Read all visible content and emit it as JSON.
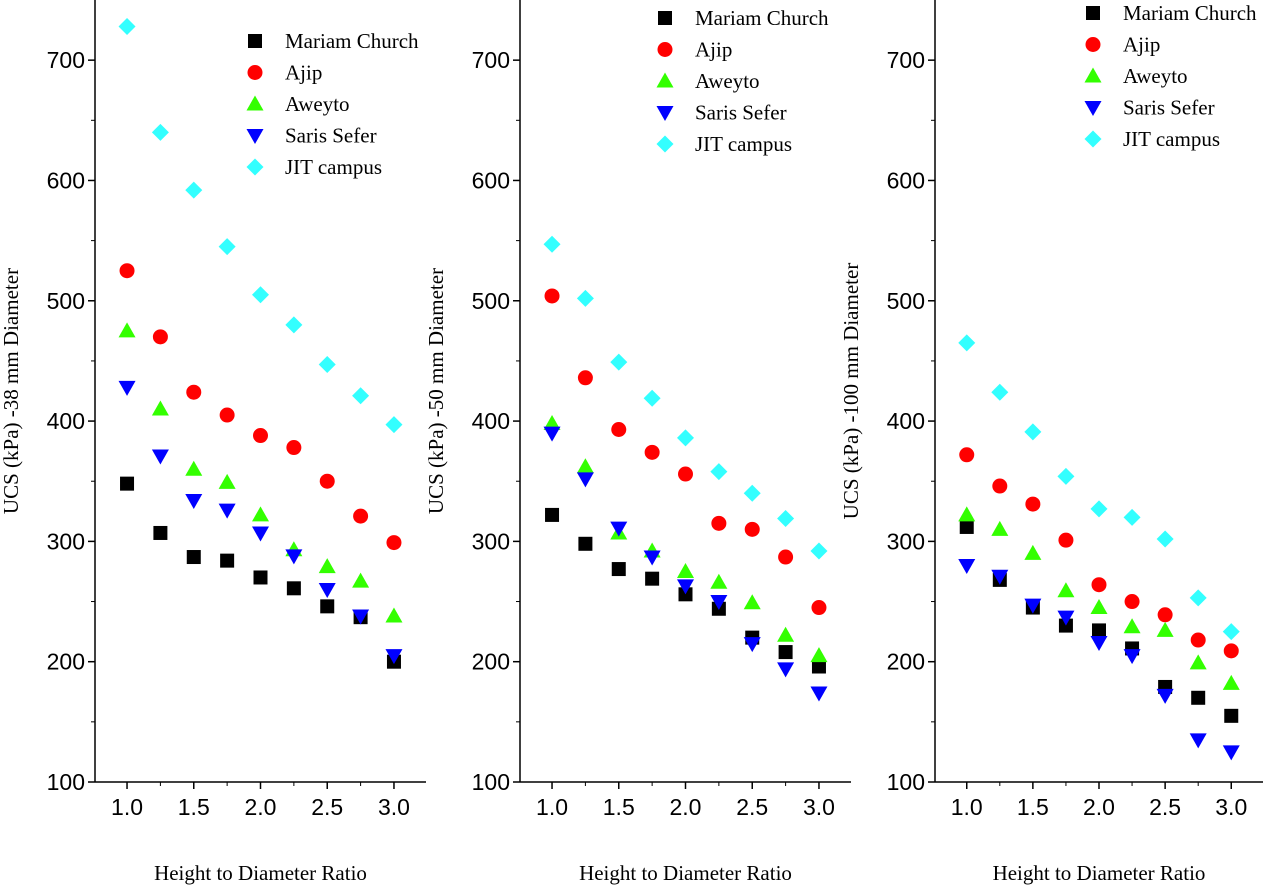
{
  "chart_data": [
    {
      "type": "scatter",
      "xlabel": "Height to Diameter Ratio",
      "ylabel": "UCS (kPa) -38 mm Diameter",
      "xlim": [
        0.76,
        3.24
      ],
      "ylim": [
        100,
        750
      ],
      "xticks": [
        "1.0",
        "1.5",
        "2.0",
        "2.5",
        "3.0"
      ],
      "yticks": [
        "100",
        "200",
        "300",
        "400",
        "500",
        "600",
        "700"
      ],
      "legend_position": "top-right",
      "x": [
        1.0,
        1.25,
        1.5,
        1.75,
        2.0,
        2.25,
        2.5,
        2.75,
        3.0
      ],
      "series": [
        {
          "name": "Mariam Church",
          "marker": "square",
          "color": "#000000",
          "values": [
            348,
            307,
            287,
            284,
            270,
            261,
            246,
            237,
            200
          ]
        },
        {
          "name": "Ajip",
          "marker": "circle",
          "color": "#ff0000",
          "values": [
            525,
            470,
            424,
            405,
            388,
            378,
            350,
            321,
            299
          ]
        },
        {
          "name": "Aweyto",
          "marker": "triangle-up",
          "color": "#33ff00",
          "values": [
            475,
            410,
            360,
            349,
            322,
            293,
            279,
            267,
            238
          ]
        },
        {
          "name": "Saris Sefer",
          "marker": "triangle-down",
          "color": "#0000ff",
          "values": [
            428,
            371,
            334,
            326,
            307,
            288,
            260,
            238,
            205
          ]
        },
        {
          "name": "JIT campus",
          "marker": "diamond",
          "color": "#33ffff",
          "values": [
            728,
            640,
            592,
            545,
            505,
            480,
            447,
            421,
            397
          ]
        }
      ]
    },
    {
      "type": "scatter",
      "xlabel": "Height to Diameter Ratio",
      "ylabel": "UCS (kPa) -50 mm Diameter",
      "xlim": [
        0.76,
        3.24
      ],
      "ylim": [
        100,
        750
      ],
      "xticks": [
        "1.0",
        "1.5",
        "2.0",
        "2.5",
        "3.0"
      ],
      "yticks": [
        "100",
        "200",
        "300",
        "400",
        "500",
        "600",
        "700"
      ],
      "legend_position": "top-right",
      "x": [
        1.0,
        1.25,
        1.5,
        1.75,
        2.0,
        2.25,
        2.5,
        2.75,
        3.0
      ],
      "series": [
        {
          "name": "Mariam Church",
          "marker": "square",
          "color": "#000000",
          "values": [
            322,
            298,
            277,
            269,
            256,
            244,
            220,
            208,
            196
          ]
        },
        {
          "name": "Ajip",
          "marker": "circle",
          "color": "#ff0000",
          "values": [
            504,
            436,
            393,
            374,
            356,
            315,
            310,
            287,
            245
          ]
        },
        {
          "name": "Aweyto",
          "marker": "triangle-up",
          "color": "#33ff00",
          "values": [
            398,
            362,
            307,
            292,
            275,
            266,
            249,
            222,
            205
          ]
        },
        {
          "name": "Saris Sefer",
          "marker": "triangle-down",
          "color": "#0000ff",
          "values": [
            390,
            352,
            311,
            287,
            263,
            250,
            215,
            194,
            174
          ]
        },
        {
          "name": "JIT campus",
          "marker": "diamond",
          "color": "#33ffff",
          "values": [
            547,
            502,
            449,
            419,
            386,
            358,
            340,
            319,
            292
          ]
        }
      ]
    },
    {
      "type": "scatter",
      "xlabel": "Height to Diameter Ratio",
      "ylabel": "UCS (kPa) -100 mm Diameter",
      "xlim": [
        0.76,
        3.24
      ],
      "ylim": [
        100,
        750
      ],
      "xticks": [
        "1.0",
        "1.5",
        "2.0",
        "2.5",
        "3.0"
      ],
      "yticks": [
        "100",
        "200",
        "300",
        "400",
        "500",
        "600",
        "700"
      ],
      "legend_position": "top-right",
      "x": [
        1.0,
        1.25,
        1.5,
        1.75,
        2.0,
        2.25,
        2.5,
        2.75,
        3.0
      ],
      "series": [
        {
          "name": "Mariam Church",
          "marker": "square",
          "color": "#000000",
          "values": [
            312,
            268,
            245,
            230,
            226,
            211,
            179,
            170,
            155
          ]
        },
        {
          "name": "Ajip",
          "marker": "circle",
          "color": "#ff0000",
          "values": [
            372,
            346,
            331,
            301,
            264,
            250,
            239,
            218,
            209
          ]
        },
        {
          "name": "Aweyto",
          "marker": "triangle-up",
          "color": "#33ff00",
          "values": [
            322,
            310,
            290,
            259,
            245,
            229,
            226,
            199,
            182
          ]
        },
        {
          "name": "Saris Sefer",
          "marker": "triangle-down",
          "color": "#0000ff",
          "values": [
            280,
            271,
            247,
            237,
            216,
            205,
            172,
            135,
            125
          ]
        },
        {
          "name": "JIT campus",
          "marker": "diamond",
          "color": "#33ffff",
          "values": [
            465,
            424,
            391,
            354,
            327,
            320,
            302,
            253,
            225
          ]
        }
      ]
    }
  ]
}
